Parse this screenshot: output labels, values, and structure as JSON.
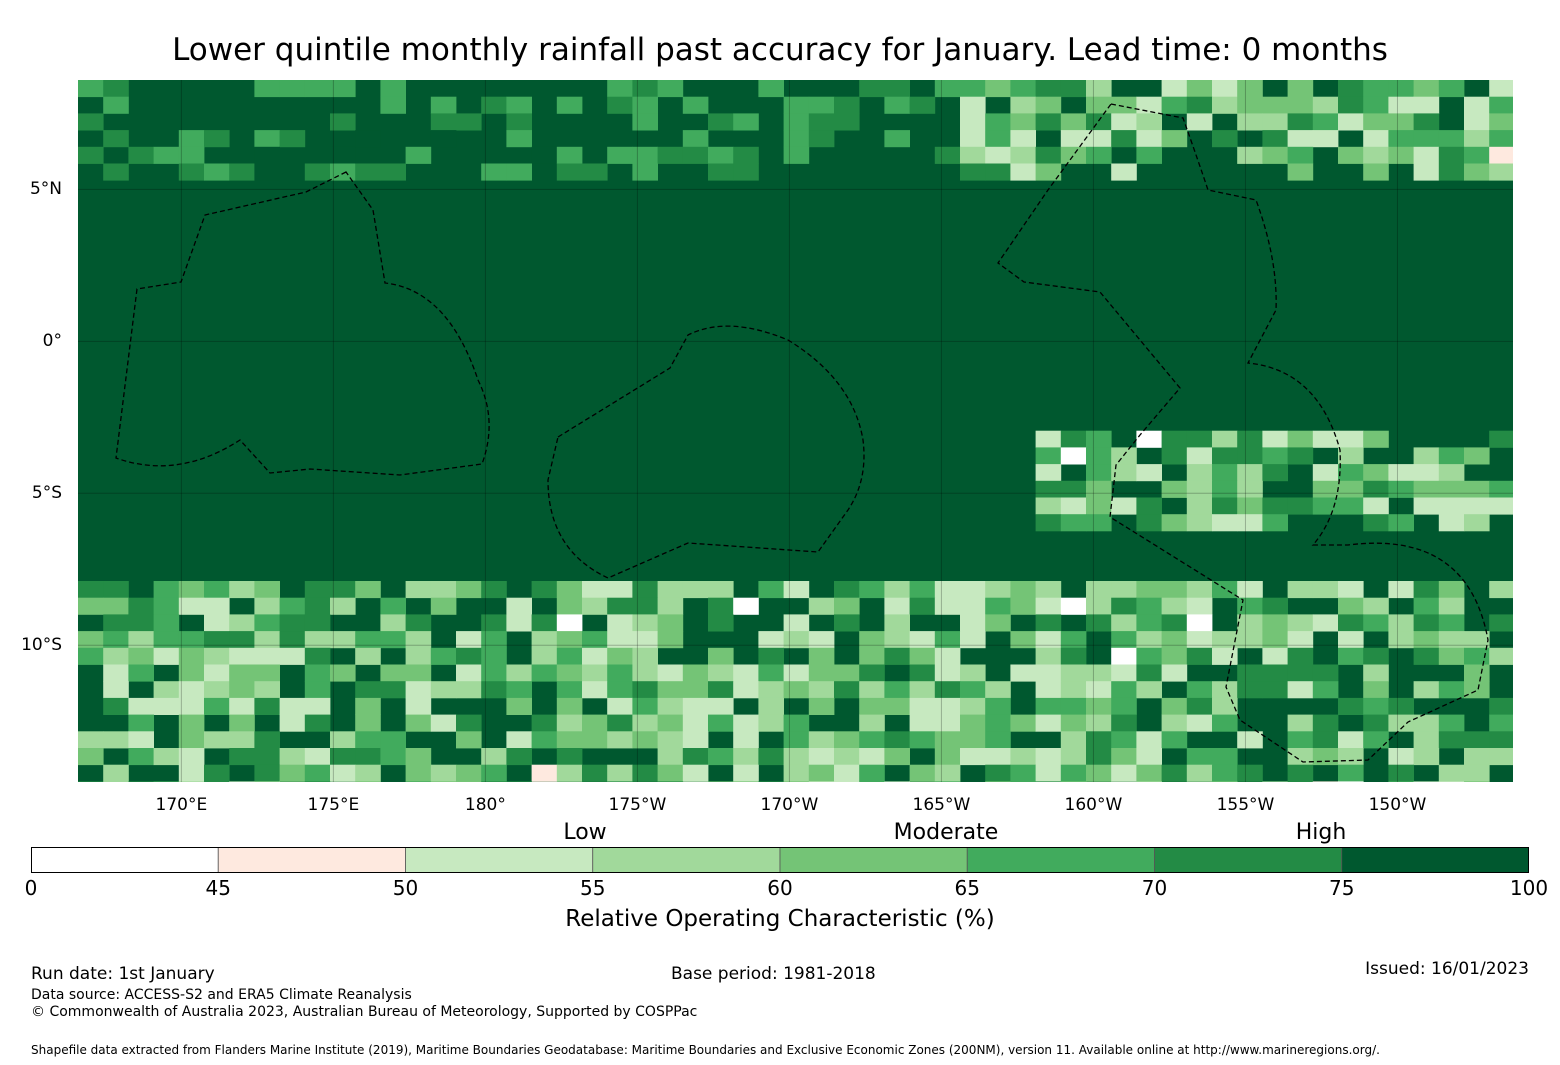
{
  "title": "Lower quintile monthly rainfall past accuracy for January. Lead time: 0 months",
  "map": {
    "longitude_labels": [
      "170°E",
      "175°E",
      "180°",
      "175°W",
      "170°W",
      "165°W",
      "160°W",
      "155°W",
      "150°W"
    ],
    "longitude_values": [
      170,
      175,
      180,
      185,
      190,
      195,
      200,
      205,
      210
    ],
    "latitude_labels": [
      "5°N",
      "0°",
      "5°S",
      "10°S"
    ],
    "latitude_values": [
      5,
      0,
      -5,
      -10
    ],
    "extent": {
      "lon_min": 166.6,
      "lon_max": 213.8,
      "lat_min": -14.5,
      "lat_max": 8.6
    },
    "colors": {
      "background": "#00582f",
      "grid": "#000000",
      "eez_line": "#000000"
    }
  },
  "colorbar": {
    "categories": [
      "Low",
      "Moderate",
      "High"
    ],
    "tick_labels": [
      "0",
      "45",
      "50",
      "55",
      "60",
      "65",
      "70",
      "75",
      "100"
    ],
    "bins": [
      {
        "from": 0,
        "to": 45,
        "color": "#ffffff"
      },
      {
        "from": 45,
        "to": 50,
        "color": "#fee9df"
      },
      {
        "from": 50,
        "to": 55,
        "color": "#c7e9c0"
      },
      {
        "from": 55,
        "to": 60,
        "color": "#a1d99b"
      },
      {
        "from": 60,
        "to": 65,
        "color": "#74c476"
      },
      {
        "from": 65,
        "to": 70,
        "color": "#41ab5d"
      },
      {
        "from": 70,
        "to": 75,
        "color": "#238b45"
      },
      {
        "from": 75,
        "to": 100,
        "color": "#00582f"
      }
    ],
    "label": "Relative Operating Characteristic (%)"
  },
  "footer": {
    "run_date": "Run date: 1st January",
    "base_period": "Base period: 1981-2018",
    "issued": "Issued: 16/01/2023",
    "data_source": "Data source: ACCESS-S2 and ERA5 Climate Reanalysis",
    "copyright": "© Commonwealth of Australia 2023, Australian Bureau of Meteorology, Supported by COSPPac",
    "shapefile": "Shapefile data extracted from Flanders Marine Institute (2019), Maritime Boundaries Geodatabase: Maritime Boundaries and Exclusive Economic Zones (200NM), version 11. Available online at http://www.marineregions.org/."
  }
}
